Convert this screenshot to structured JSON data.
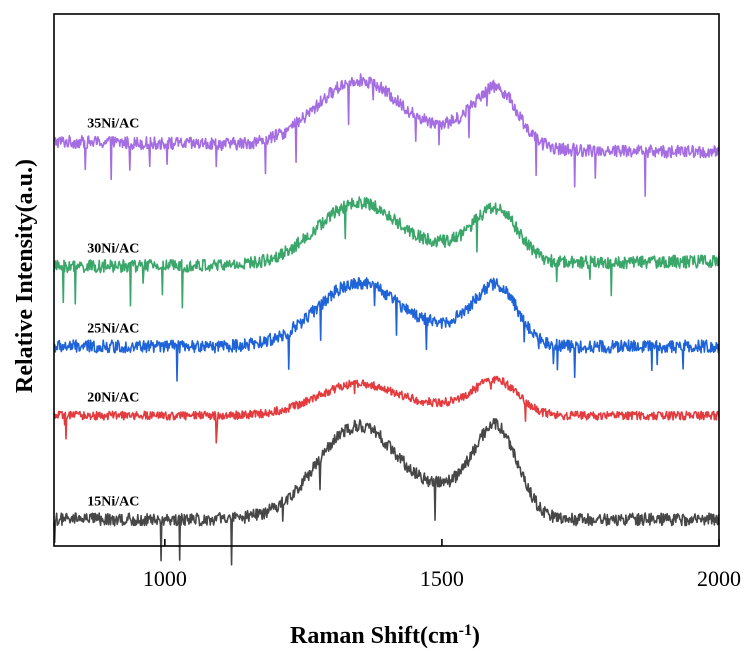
{
  "chart_data": {
    "type": "line",
    "xlabel": "Raman Shift(cm",
    "xlabel_sup": "-1",
    "xlabel_close": ")",
    "ylabel": "Relative Intensity(a.u.)",
    "xlim": [
      800,
      2000
    ],
    "xticks": [
      1000,
      1500,
      2000
    ],
    "y_ticks_shown": false,
    "grid": false,
    "legend": "inline labels at left",
    "d_band_center": 1350,
    "g_band_center": 1600,
    "series": [
      {
        "name": "35Ni/AC",
        "color": "#a56de2",
        "baseline": 0.76,
        "d_band_height": 0.125,
        "g_band_height": 0.095,
        "tail_drop": 0.02,
        "noise": 0.012
      },
      {
        "name": "30Ni/AC",
        "color": "#3aa66a",
        "baseline": 0.525,
        "d_band_height": 0.115,
        "g_band_height": 0.085,
        "tail_drop": -0.01,
        "noise": 0.012
      },
      {
        "name": "25Ni/AC",
        "color": "#1f63d8",
        "baseline": 0.375,
        "d_band_height": 0.12,
        "g_band_height": 0.095,
        "tail_drop": 0.0,
        "noise": 0.012
      },
      {
        "name": "20Ni/AC",
        "color": "#e43b3f",
        "baseline": 0.245,
        "d_band_height": 0.06,
        "g_band_height": 0.055,
        "tail_drop": 0.0,
        "noise": 0.008
      },
      {
        "name": "15Ni/AC",
        "color": "#474747",
        "baseline": 0.05,
        "d_band_height": 0.175,
        "g_band_height": 0.145,
        "tail_drop": 0.0,
        "noise": 0.012
      }
    ]
  }
}
